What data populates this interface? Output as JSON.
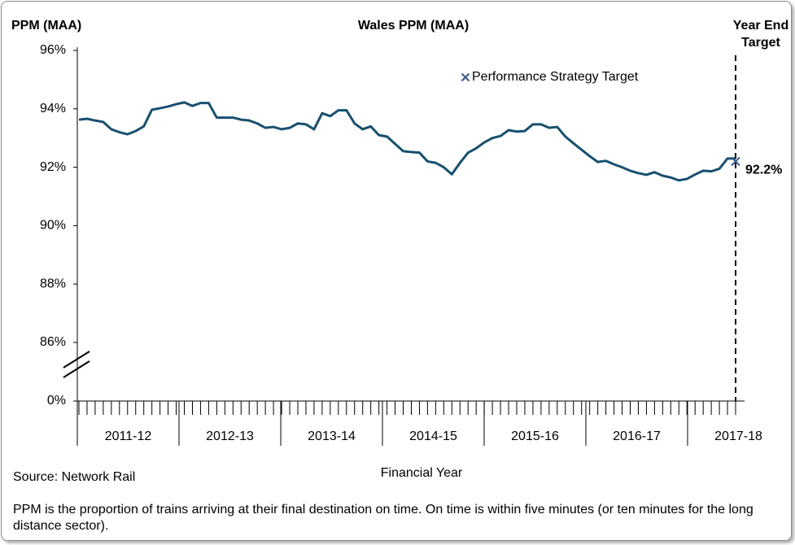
{
  "chart_data": {
    "type": "line",
    "title": "Wales PPM (MAA)",
    "y_label": "PPM (MAA)",
    "x_label": "Financial Year",
    "source": "Source: Network Rail",
    "note": "PPM is the proportion of trains arriving at their final destination on time. On time is within five minutes (or ten minutes for the long distance sector).",
    "year_labels": [
      "2011-12",
      "2012-13",
      "2013-14",
      "2014-15",
      "2015-16",
      "2016-17",
      "2017-18"
    ],
    "ylim": [
      0,
      96
    ],
    "y_break": 86,
    "yticks": [
      {
        "value": 96,
        "label": "96%"
      },
      {
        "value": 94,
        "label": "94%"
      },
      {
        "value": 92,
        "label": "92%"
      },
      {
        "value": 90,
        "label": "90%"
      },
      {
        "value": 88,
        "label": "88%"
      },
      {
        "value": 86,
        "label": "86%"
      },
      {
        "value": 0,
        "label": "0%"
      }
    ],
    "series": [
      {
        "name": "PPM (MAA)",
        "color": "#17506e",
        "values": [
          93.63,
          93.66,
          93.6,
          93.55,
          93.3,
          93.2,
          93.13,
          93.24,
          93.4,
          93.97,
          94.02,
          94.08,
          94.16,
          94.22,
          94.1,
          94.2,
          94.2,
          93.7,
          93.7,
          93.7,
          93.63,
          93.6,
          93.5,
          93.35,
          93.38,
          93.3,
          93.35,
          93.5,
          93.47,
          93.3,
          93.85,
          93.75,
          93.95,
          93.95,
          93.5,
          93.3,
          93.4,
          93.1,
          93.05,
          92.8,
          92.55,
          92.52,
          92.5,
          92.2,
          92.15,
          92.0,
          91.76,
          92.15,
          92.5,
          92.65,
          92.85,
          93.0,
          93.07,
          93.27,
          93.22,
          93.24,
          93.47,
          93.47,
          93.35,
          93.38,
          93.05,
          92.82,
          92.6,
          92.38,
          92.18,
          92.22,
          92.1,
          92.0,
          91.88,
          91.8,
          91.74,
          91.83,
          91.71,
          91.65,
          91.55,
          91.6,
          91.75,
          91.88,
          91.86,
          91.95,
          92.3,
          92.3
        ]
      }
    ],
    "target": {
      "name": "Performance Strategy Target",
      "label": [
        "Year End",
        "Target"
      ],
      "value": 92.2,
      "value_label": "92.2%",
      "color": "#3a5689"
    }
  }
}
